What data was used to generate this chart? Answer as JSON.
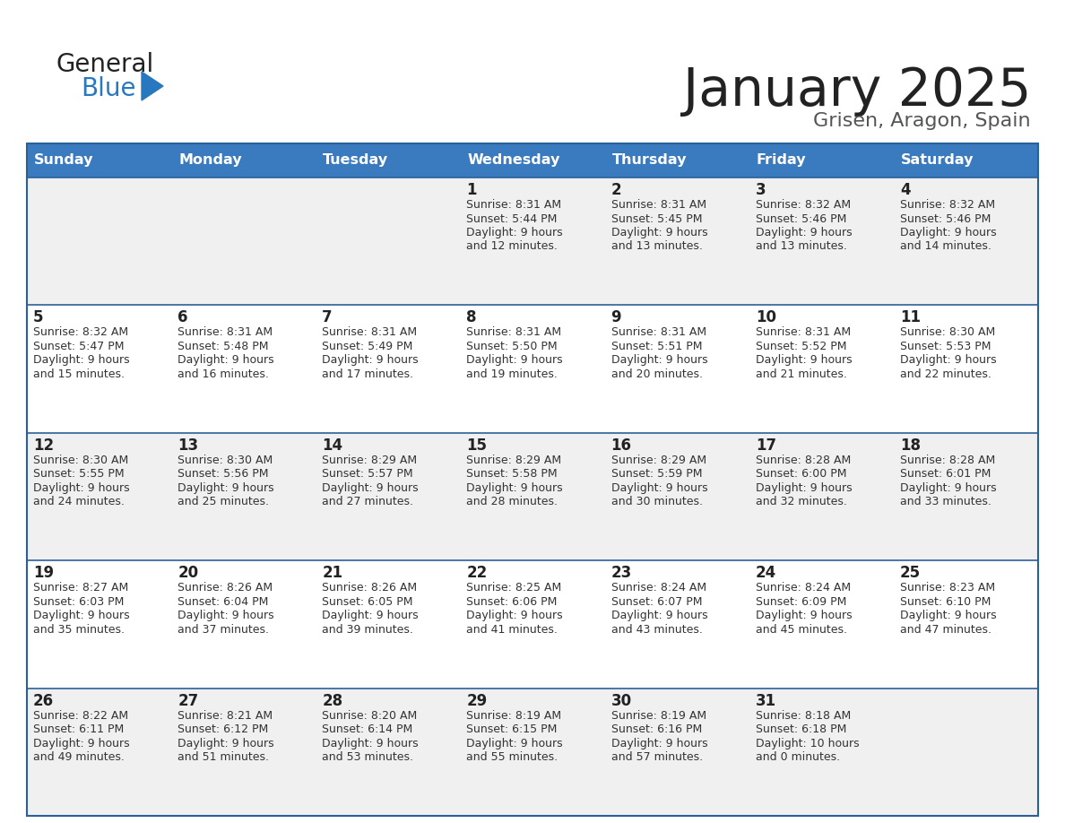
{
  "title": "January 2025",
  "subtitle": "Grisen, Aragon, Spain",
  "header_color": "#3a7abf",
  "header_text_color": "#ffffff",
  "day_names": [
    "Sunday",
    "Monday",
    "Tuesday",
    "Wednesday",
    "Thursday",
    "Friday",
    "Saturday"
  ],
  "title_color": "#222222",
  "subtitle_color": "#555555",
  "cell_bg_even": "#f0f0f0",
  "cell_bg_odd": "#ffffff",
  "cell_border_color": "#2a6099",
  "day_number_color": "#222222",
  "cell_text_color": "#333333",
  "logo_general_color": "#222222",
  "logo_blue_color": "#2878c0",
  "weeks": [
    {
      "days": [
        {
          "date": null,
          "info": null
        },
        {
          "date": null,
          "info": null
        },
        {
          "date": null,
          "info": null
        },
        {
          "date": 1,
          "info": {
            "sunrise": "8:31 AM",
            "sunset": "5:44 PM",
            "daylight_h": "9 hours",
            "daylight_m": "and 12 minutes."
          }
        },
        {
          "date": 2,
          "info": {
            "sunrise": "8:31 AM",
            "sunset": "5:45 PM",
            "daylight_h": "9 hours",
            "daylight_m": "and 13 minutes."
          }
        },
        {
          "date": 3,
          "info": {
            "sunrise": "8:32 AM",
            "sunset": "5:46 PM",
            "daylight_h": "9 hours",
            "daylight_m": "and 13 minutes."
          }
        },
        {
          "date": 4,
          "info": {
            "sunrise": "8:32 AM",
            "sunset": "5:46 PM",
            "daylight_h": "9 hours",
            "daylight_m": "and 14 minutes."
          }
        }
      ]
    },
    {
      "days": [
        {
          "date": 5,
          "info": {
            "sunrise": "8:32 AM",
            "sunset": "5:47 PM",
            "daylight_h": "9 hours",
            "daylight_m": "and 15 minutes."
          }
        },
        {
          "date": 6,
          "info": {
            "sunrise": "8:31 AM",
            "sunset": "5:48 PM",
            "daylight_h": "9 hours",
            "daylight_m": "and 16 minutes."
          }
        },
        {
          "date": 7,
          "info": {
            "sunrise": "8:31 AM",
            "sunset": "5:49 PM",
            "daylight_h": "9 hours",
            "daylight_m": "and 17 minutes."
          }
        },
        {
          "date": 8,
          "info": {
            "sunrise": "8:31 AM",
            "sunset": "5:50 PM",
            "daylight_h": "9 hours",
            "daylight_m": "and 19 minutes."
          }
        },
        {
          "date": 9,
          "info": {
            "sunrise": "8:31 AM",
            "sunset": "5:51 PM",
            "daylight_h": "9 hours",
            "daylight_m": "and 20 minutes."
          }
        },
        {
          "date": 10,
          "info": {
            "sunrise": "8:31 AM",
            "sunset": "5:52 PM",
            "daylight_h": "9 hours",
            "daylight_m": "and 21 minutes."
          }
        },
        {
          "date": 11,
          "info": {
            "sunrise": "8:30 AM",
            "sunset": "5:53 PM",
            "daylight_h": "9 hours",
            "daylight_m": "and 22 minutes."
          }
        }
      ]
    },
    {
      "days": [
        {
          "date": 12,
          "info": {
            "sunrise": "8:30 AM",
            "sunset": "5:55 PM",
            "daylight_h": "9 hours",
            "daylight_m": "and 24 minutes."
          }
        },
        {
          "date": 13,
          "info": {
            "sunrise": "8:30 AM",
            "sunset": "5:56 PM",
            "daylight_h": "9 hours",
            "daylight_m": "and 25 minutes."
          }
        },
        {
          "date": 14,
          "info": {
            "sunrise": "8:29 AM",
            "sunset": "5:57 PM",
            "daylight_h": "9 hours",
            "daylight_m": "and 27 minutes."
          }
        },
        {
          "date": 15,
          "info": {
            "sunrise": "8:29 AM",
            "sunset": "5:58 PM",
            "daylight_h": "9 hours",
            "daylight_m": "and 28 minutes."
          }
        },
        {
          "date": 16,
          "info": {
            "sunrise": "8:29 AM",
            "sunset": "5:59 PM",
            "daylight_h": "9 hours",
            "daylight_m": "and 30 minutes."
          }
        },
        {
          "date": 17,
          "info": {
            "sunrise": "8:28 AM",
            "sunset": "6:00 PM",
            "daylight_h": "9 hours",
            "daylight_m": "and 32 minutes."
          }
        },
        {
          "date": 18,
          "info": {
            "sunrise": "8:28 AM",
            "sunset": "6:01 PM",
            "daylight_h": "9 hours",
            "daylight_m": "and 33 minutes."
          }
        }
      ]
    },
    {
      "days": [
        {
          "date": 19,
          "info": {
            "sunrise": "8:27 AM",
            "sunset": "6:03 PM",
            "daylight_h": "9 hours",
            "daylight_m": "and 35 minutes."
          }
        },
        {
          "date": 20,
          "info": {
            "sunrise": "8:26 AM",
            "sunset": "6:04 PM",
            "daylight_h": "9 hours",
            "daylight_m": "and 37 minutes."
          }
        },
        {
          "date": 21,
          "info": {
            "sunrise": "8:26 AM",
            "sunset": "6:05 PM",
            "daylight_h": "9 hours",
            "daylight_m": "and 39 minutes."
          }
        },
        {
          "date": 22,
          "info": {
            "sunrise": "8:25 AM",
            "sunset": "6:06 PM",
            "daylight_h": "9 hours",
            "daylight_m": "and 41 minutes."
          }
        },
        {
          "date": 23,
          "info": {
            "sunrise": "8:24 AM",
            "sunset": "6:07 PM",
            "daylight_h": "9 hours",
            "daylight_m": "and 43 minutes."
          }
        },
        {
          "date": 24,
          "info": {
            "sunrise": "8:24 AM",
            "sunset": "6:09 PM",
            "daylight_h": "9 hours",
            "daylight_m": "and 45 minutes."
          }
        },
        {
          "date": 25,
          "info": {
            "sunrise": "8:23 AM",
            "sunset": "6:10 PM",
            "daylight_h": "9 hours",
            "daylight_m": "and 47 minutes."
          }
        }
      ]
    },
    {
      "days": [
        {
          "date": 26,
          "info": {
            "sunrise": "8:22 AM",
            "sunset": "6:11 PM",
            "daylight_h": "9 hours",
            "daylight_m": "and 49 minutes."
          }
        },
        {
          "date": 27,
          "info": {
            "sunrise": "8:21 AM",
            "sunset": "6:12 PM",
            "daylight_h": "9 hours",
            "daylight_m": "and 51 minutes."
          }
        },
        {
          "date": 28,
          "info": {
            "sunrise": "8:20 AM",
            "sunset": "6:14 PM",
            "daylight_h": "9 hours",
            "daylight_m": "and 53 minutes."
          }
        },
        {
          "date": 29,
          "info": {
            "sunrise": "8:19 AM",
            "sunset": "6:15 PM",
            "daylight_h": "9 hours",
            "daylight_m": "and 55 minutes."
          }
        },
        {
          "date": 30,
          "info": {
            "sunrise": "8:19 AM",
            "sunset": "6:16 PM",
            "daylight_h": "9 hours",
            "daylight_m": "and 57 minutes."
          }
        },
        {
          "date": 31,
          "info": {
            "sunrise": "8:18 AM",
            "sunset": "6:18 PM",
            "daylight_h": "10 hours",
            "daylight_m": "and 0 minutes."
          }
        },
        {
          "date": null,
          "info": null
        }
      ]
    }
  ]
}
